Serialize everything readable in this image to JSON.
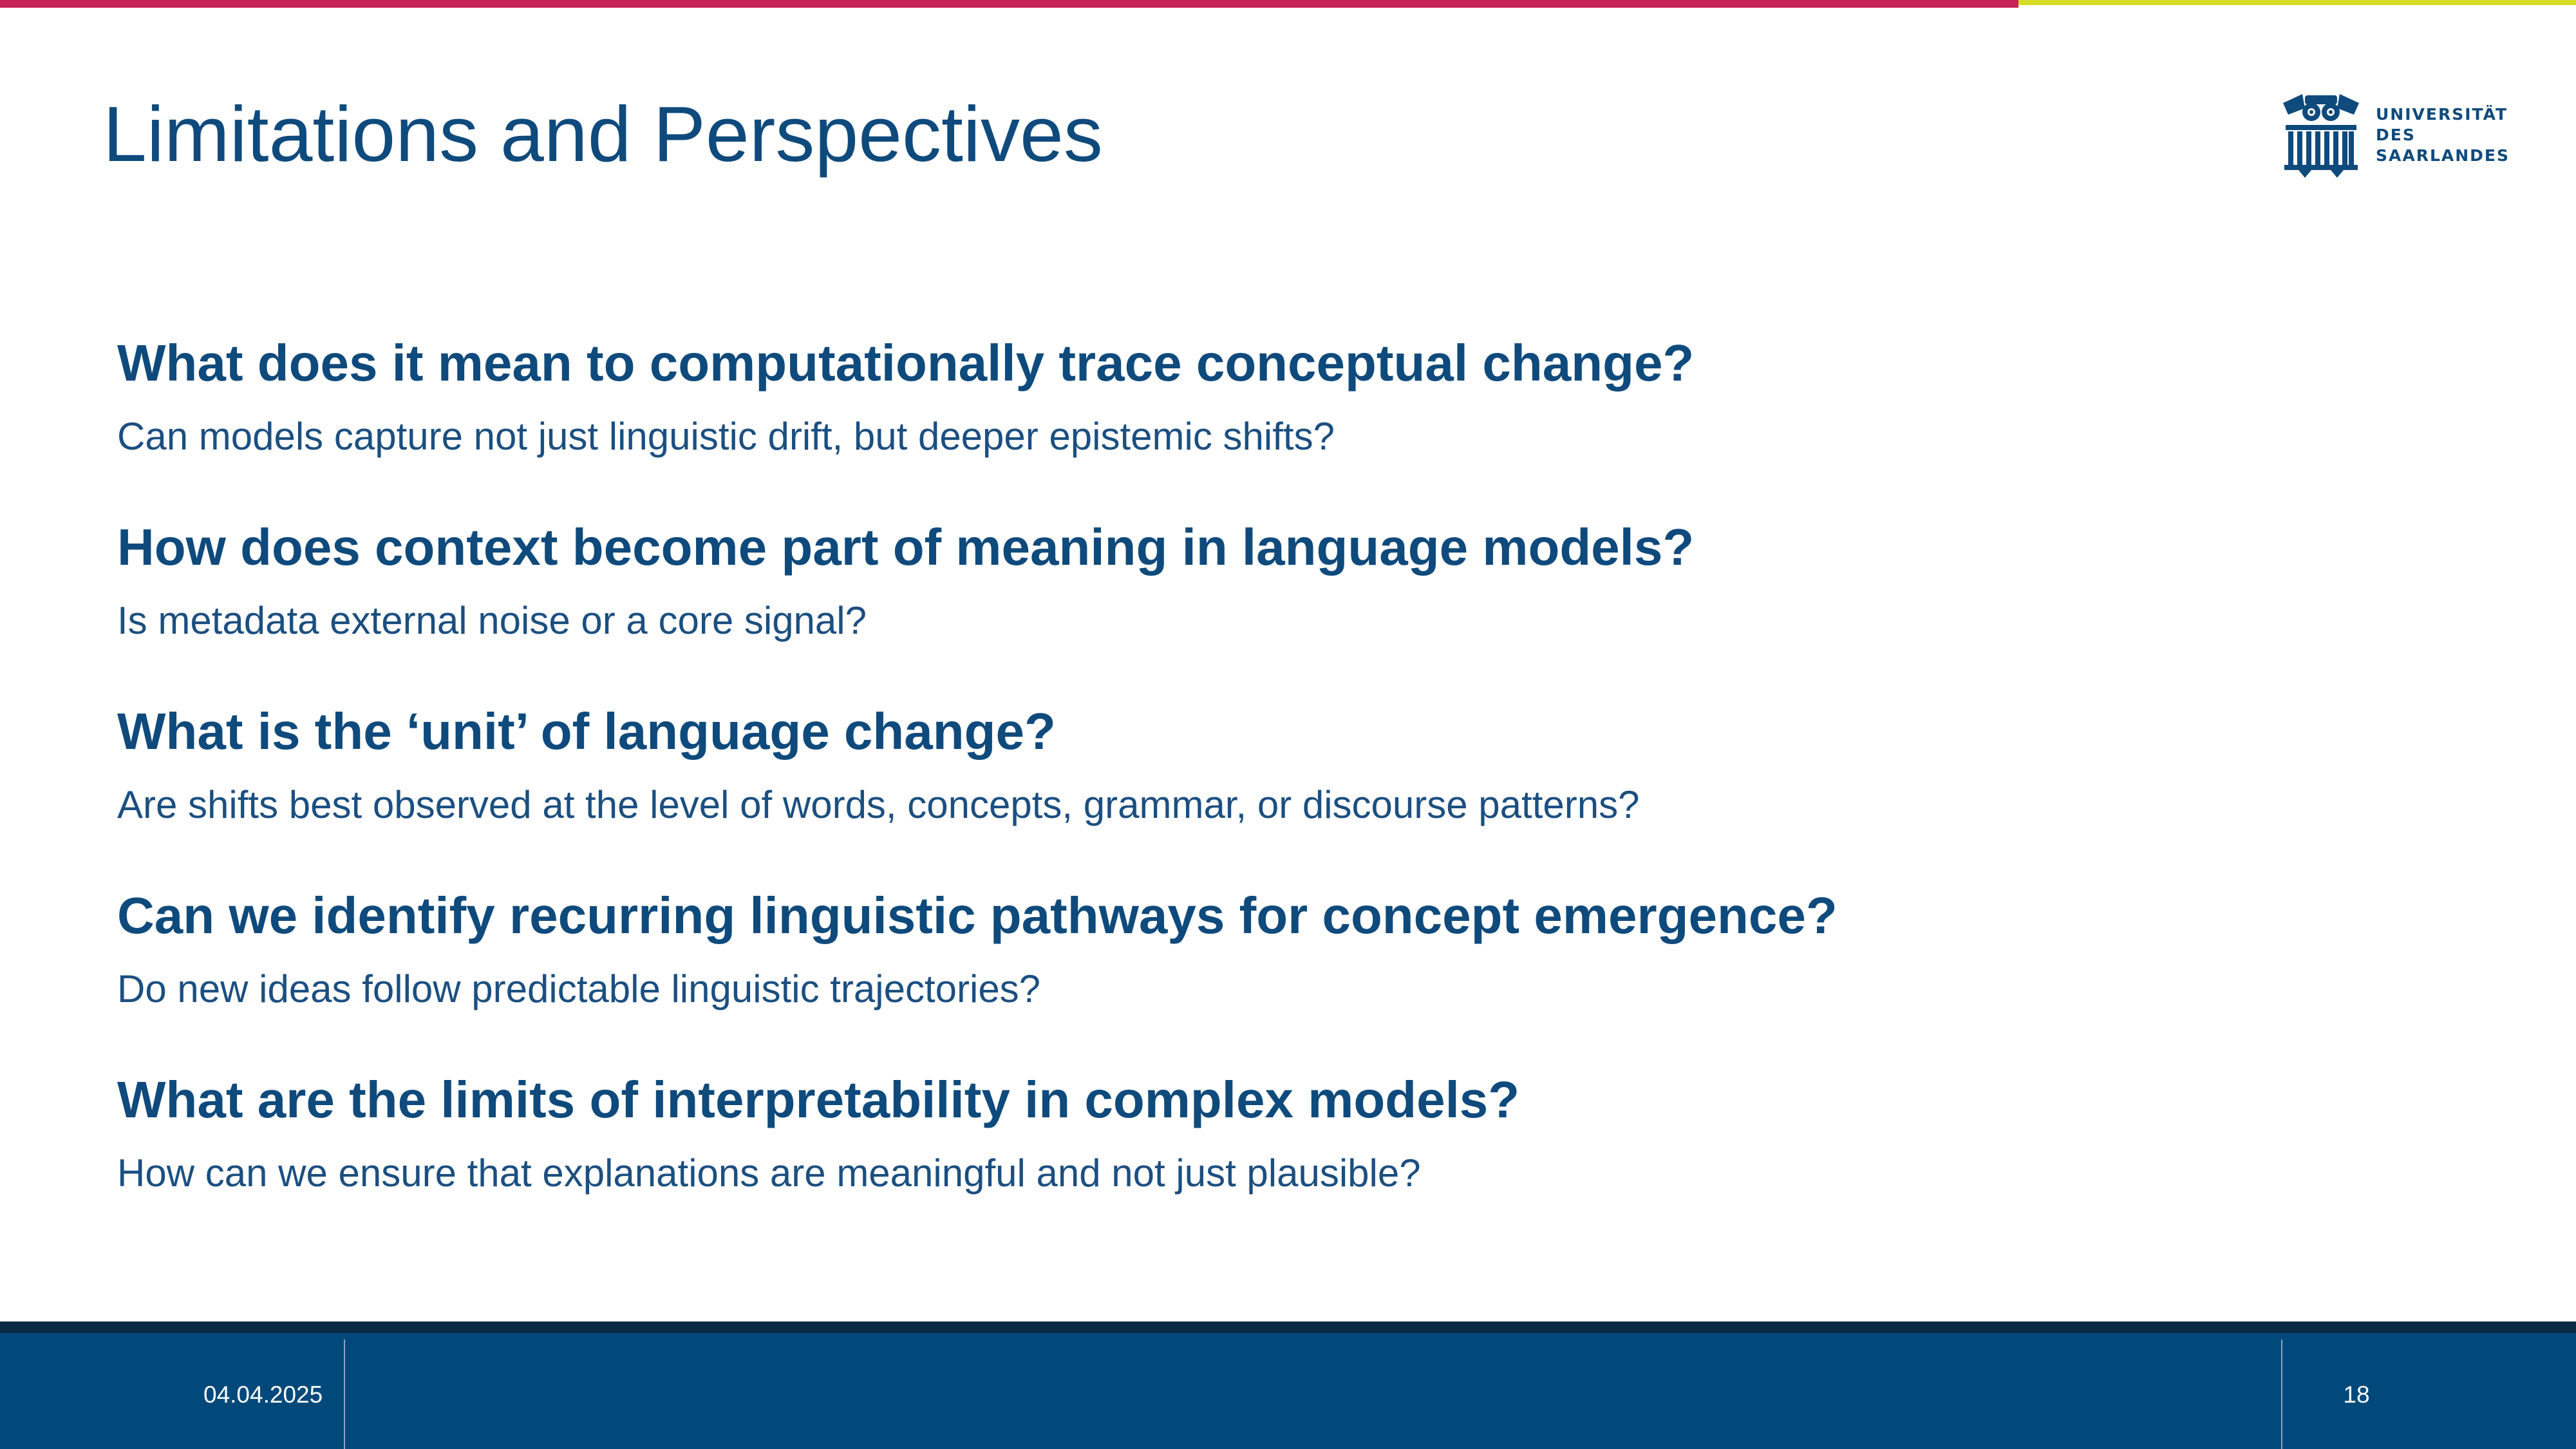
{
  "slide": {
    "title": "Limitations and Perspectives"
  },
  "logo": {
    "line1": "UNIVERSITÄT",
    "line2": "DES",
    "line3": "SAARLANDES"
  },
  "items": [
    {
      "question": "What does it mean to computationally trace conceptual change?",
      "answer": "Can models capture not just linguistic drift, but deeper epistemic shifts?"
    },
    {
      "question": "How does context become part of meaning in language models?",
      "answer": "Is metadata external noise or a core signal?"
    },
    {
      "question": "What is the ‘unit’ of language change?",
      "answer": "Are shifts best observed at the level of words, concepts, grammar, or discourse patterns?"
    },
    {
      "question": "Can we identify recurring linguistic pathways for concept emergence?",
      "answer": "Do new ideas follow predictable linguistic trajectories?"
    },
    {
      "question": "What are the limits of interpretability in complex models?",
      "answer": "How can we ensure that explanations are meaningful and not just plausible?"
    }
  ],
  "footer": {
    "date": "04.04.2025",
    "page": "18"
  },
  "colors": {
    "accent_red": "#c8245a",
    "accent_yellow": "#d7dc28",
    "brand_blue": "#0f4a7c",
    "footer_blue": "#00497a"
  }
}
